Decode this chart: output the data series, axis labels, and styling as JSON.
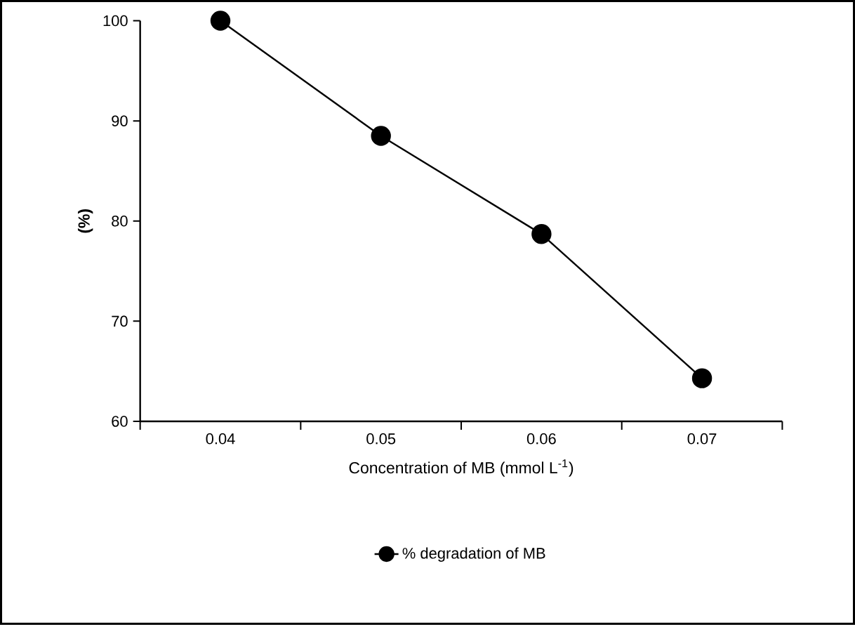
{
  "chart_data": {
    "type": "line",
    "categories": [
      "0.04",
      "0.05",
      "0.06",
      "0.07"
    ],
    "series": [
      {
        "name": "% degradation of MB",
        "color": "#000000",
        "values": [
          100,
          88.5,
          78.7,
          64.3
        ]
      }
    ],
    "xlabel": "Concentration of MB (mmol L$^{-1}$)",
    "ylabel": "(%)",
    "ylim": [
      60,
      100
    ],
    "yticks": [
      60,
      70,
      80,
      90,
      100
    ],
    "marker": "circle",
    "legend": "bottom",
    "grid": false
  }
}
